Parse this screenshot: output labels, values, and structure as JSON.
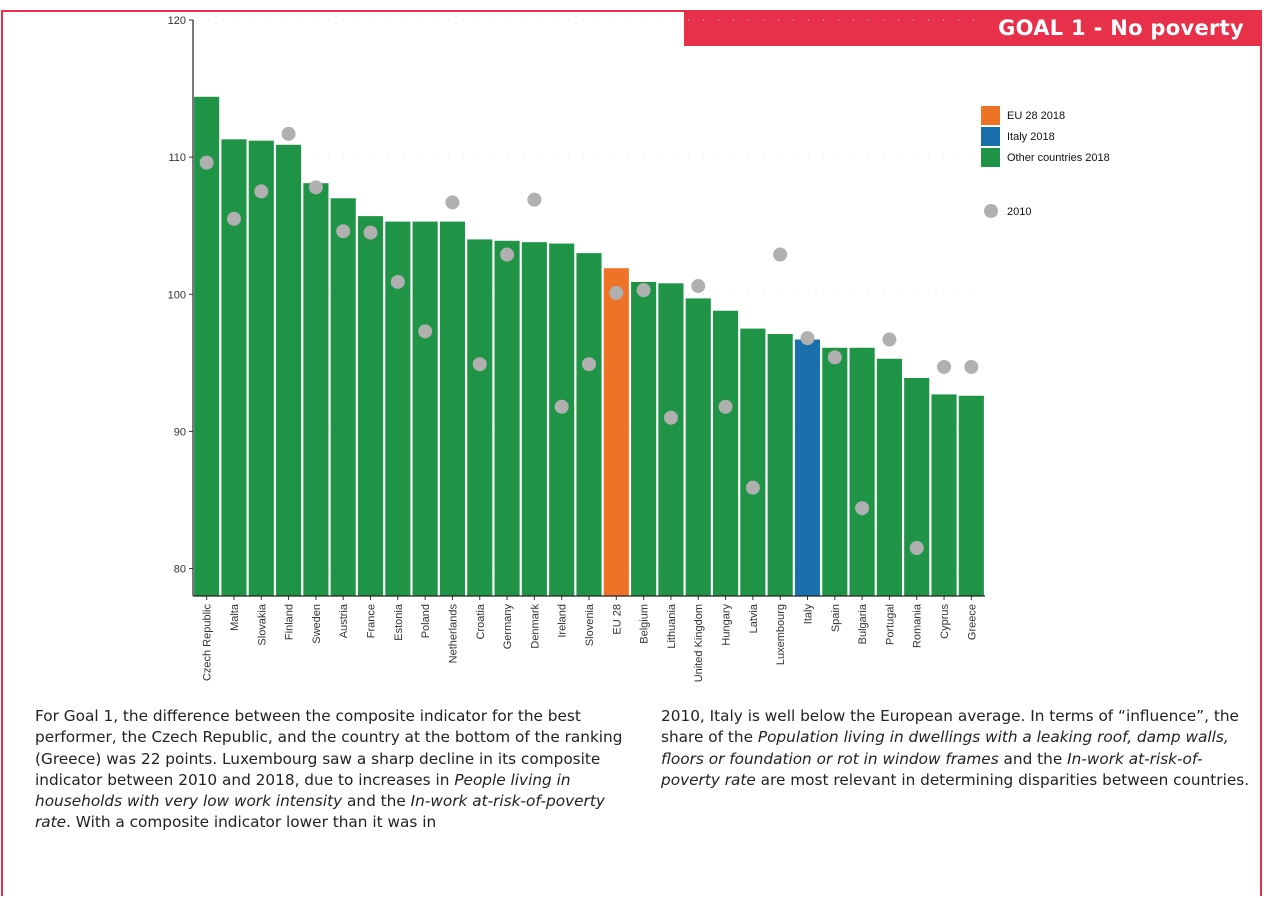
{
  "banner": {
    "title": "GOAL 1 - No poverty"
  },
  "colors": {
    "accent": "#e8304a",
    "eu": "#ee7326",
    "italy": "#1a6fad",
    "other": "#1f9447",
    "dot_2010": "#b0b0b0"
  },
  "chart_data": {
    "type": "bar",
    "title": "",
    "xlabel": "",
    "ylabel": "",
    "ylim": [
      78,
      120
    ],
    "yticks": [
      80,
      90,
      100,
      110,
      120
    ],
    "grid": false,
    "legend_position": "right",
    "categories": [
      "Czech Republic",
      "Malta",
      "Slovakia",
      "Finland",
      "Sweden",
      "Austria",
      "France",
      "Estonia",
      "Poland",
      "Netherlands",
      "Croatia",
      "Germany",
      "Denmark",
      "Ireland",
      "Slovenia",
      "EU 28",
      "Belgium",
      "Lithuania",
      "United Kingdom",
      "Hungary",
      "Latvia",
      "Luxembourg",
      "Italy",
      "Spain",
      "Bulgaria",
      "Portugal",
      "Romania",
      "Cyprus",
      "Greece"
    ],
    "series": [
      {
        "name": "2018",
        "values": [
          114.4,
          111.3,
          111.2,
          110.9,
          108.1,
          107.0,
          105.7,
          105.3,
          105.3,
          105.3,
          104.0,
          103.9,
          103.8,
          103.7,
          103.0,
          101.9,
          100.9,
          100.8,
          99.7,
          98.8,
          97.5,
          97.1,
          96.7,
          96.1,
          96.1,
          95.3,
          93.9,
          92.7,
          92.6
        ],
        "group": [
          "other",
          "other",
          "other",
          "other",
          "other",
          "other",
          "other",
          "other",
          "other",
          "other",
          "other",
          "other",
          "other",
          "other",
          "other",
          "eu",
          "other",
          "other",
          "other",
          "other",
          "other",
          "other",
          "italy",
          "other",
          "other",
          "other",
          "other",
          "other",
          "other"
        ]
      },
      {
        "name": "2010",
        "values": [
          109.6,
          105.5,
          107.5,
          111.7,
          107.8,
          104.6,
          104.5,
          100.9,
          97.3,
          106.7,
          94.9,
          102.9,
          106.9,
          91.8,
          94.9,
          100.1,
          100.3,
          91.0,
          100.6,
          91.8,
          85.9,
          102.9,
          96.8,
          95.4,
          84.4,
          96.7,
          81.5,
          94.7,
          94.7
        ]
      }
    ],
    "legend": [
      {
        "label": "EU 28 2018",
        "key": "eu"
      },
      {
        "label": "Italy 2018",
        "key": "italy"
      },
      {
        "label": "Other countries 2018",
        "key": "other"
      },
      {
        "label": "2010",
        "key": "dot_2010"
      }
    ]
  },
  "text": {
    "col1": [
      "For Goal 1, the difference between the composite indicator for the best performer, the Czech Republic, and the country at the bottom of the ranking (Greece) was 22 points. Luxembourg saw a sharp decline in its composite indicator between 2010 and 2018, due to increases in ",
      "People living in households with very low work intensity",
      " and the ",
      "In-work at-risk-of-poverty rate",
      ". With a composite indicator lower than it was in"
    ],
    "col2": [
      "2010, Italy is well below the European average. In terms of “influence”, the share of the ",
      "Population living in dwellings with a leaking roof, damp walls, floors or foundation or rot in window frames",
      " and the ",
      "In-work at-risk-of-poverty rate",
      " are most relevant in determining disparities between countries."
    ]
  }
}
